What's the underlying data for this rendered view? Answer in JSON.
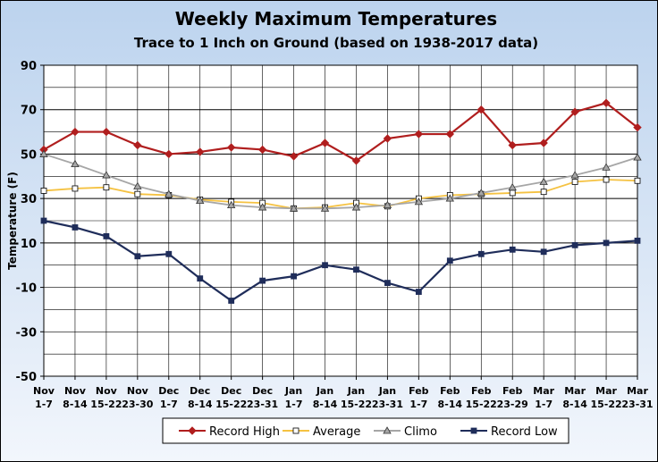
{
  "chart_data": {
    "type": "line",
    "title": "Weekly Maximum Temperatures",
    "subtitle": "Trace to 1 Inch on Ground (based on 1938-2017 data)",
    "xlabel": "",
    "ylabel": "Temperature (F)",
    "ylim": [
      -50,
      90
    ],
    "yticks": [
      -50,
      -30,
      -10,
      10,
      30,
      50,
      70,
      90
    ],
    "grid": true,
    "legend_position": "bottom",
    "categories": [
      [
        "Nov",
        "1-7"
      ],
      [
        "Nov",
        "8-14"
      ],
      [
        "Nov",
        "15-22"
      ],
      [
        "Nov",
        "23-30"
      ],
      [
        "Dec",
        "1-7"
      ],
      [
        "Dec",
        "8-14"
      ],
      [
        "Dec",
        "15-22"
      ],
      [
        "Dec",
        "23-31"
      ],
      [
        "Jan",
        "1-7"
      ],
      [
        "Jan",
        "8-14"
      ],
      [
        "Jan",
        "15-22"
      ],
      [
        "Jan",
        "23-31"
      ],
      [
        "Feb",
        "1-7"
      ],
      [
        "Feb",
        "8-14"
      ],
      [
        "Feb",
        "15-22"
      ],
      [
        "Feb",
        "23-29"
      ],
      [
        "Mar",
        "1-7"
      ],
      [
        "Mar",
        "8-14"
      ],
      [
        "Mar",
        "15-22"
      ],
      [
        "Mar",
        "23-31"
      ]
    ],
    "series": [
      {
        "name": "Record High",
        "color": "#B01E1E",
        "marker": "diamond",
        "values": [
          52,
          60,
          60,
          54,
          50,
          51,
          53,
          52,
          49,
          55,
          47,
          57,
          59,
          59,
          70,
          54,
          55,
          69,
          73,
          62
        ]
      },
      {
        "name": "Average",
        "color": "#F5C242",
        "marker": "square",
        "values": [
          33.5,
          34.5,
          35,
          32,
          31.5,
          29.5,
          28.5,
          28,
          25.5,
          26,
          28,
          26.5,
          30,
          31.5,
          32,
          32.5,
          33,
          37.5,
          38.5,
          38
        ]
      },
      {
        "name": "Climo",
        "color": "#A6A6A6",
        "marker": "triangle",
        "values": [
          50,
          45.5,
          40.5,
          35.5,
          32,
          29,
          27,
          26,
          25.5,
          25.5,
          26,
          27,
          28.5,
          30,
          32.5,
          35,
          37.5,
          40.5,
          44,
          48.5
        ]
      },
      {
        "name": "Record Low",
        "color": "#1F2D5A",
        "marker": "square",
        "values": [
          20,
          17,
          13,
          4,
          5,
          -6,
          -16,
          -7,
          -5,
          0,
          -2,
          -8,
          -12,
          2,
          5,
          7,
          6,
          9,
          10,
          11
        ]
      }
    ]
  },
  "colors": {
    "background_top": "#BCD3EE",
    "background_bottom": "#F2F6FC",
    "plot_background": "#FFFFFF",
    "grid": "#000000"
  }
}
